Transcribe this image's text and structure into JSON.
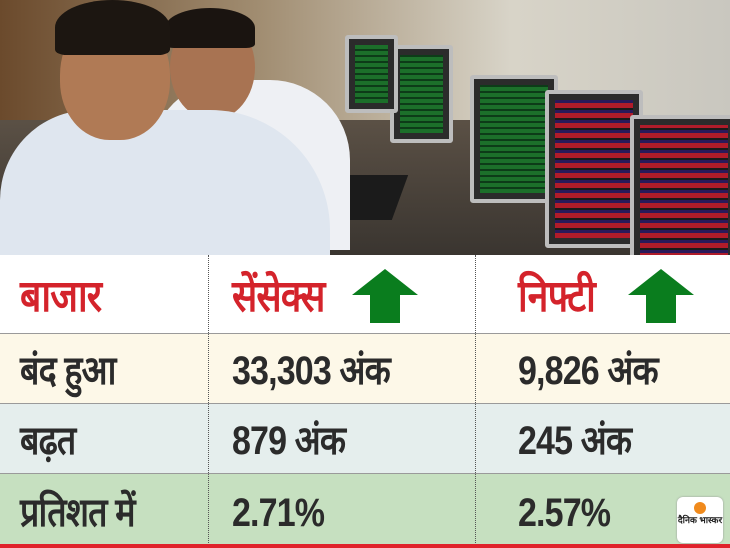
{
  "table": {
    "headers": [
      "बाजार",
      "सेंसेक्स",
      "निफ्टी"
    ],
    "rows": [
      {
        "label": "बंद हुआ",
        "sensex": "33,303 अंक",
        "nifty": "9,826 अंक"
      },
      {
        "label": "बढ़त",
        "sensex": "879 अंक",
        "nifty": "245 अंक"
      },
      {
        "label": "प्रतिशत में",
        "sensex": "2.71%",
        "nifty": "2.57%"
      }
    ],
    "trend_icons": {
      "sensex": "arrow-up-icon",
      "nifty": "arrow-up-icon"
    }
  },
  "logo": {
    "text": "दैनिक भास्कर"
  },
  "colors": {
    "header_text": "#d4232b",
    "arrow": "#0a7d1e",
    "row1": "#fdf8e8",
    "row2": "#e5eeed",
    "row3": "#c6e0c0",
    "accent_line": "#e0222b"
  }
}
